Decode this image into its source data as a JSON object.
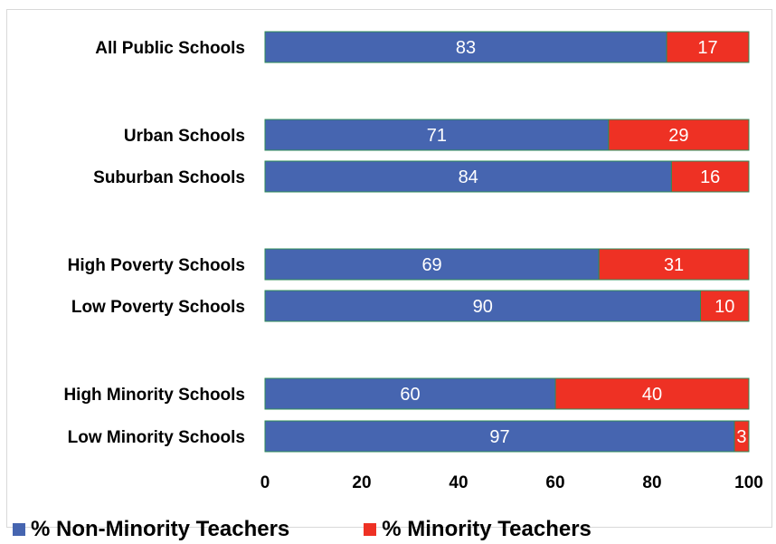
{
  "chart_data": {
    "type": "bar",
    "orientation": "horizontal",
    "stacked": true,
    "categories": [
      "All Public Schools",
      "Urban Schools",
      "Suburban Schools",
      "High Poverty Schools",
      "Low Poverty Schools",
      "High Minority Schools",
      "Low Minority Schools"
    ],
    "groups": [
      [
        0
      ],
      [
        1,
        2
      ],
      [
        3,
        4
      ],
      [
        5,
        6
      ]
    ],
    "series": [
      {
        "name": "% Non-Minority Teachers",
        "color": "#4665b0",
        "values": [
          83,
          71,
          84,
          69,
          90,
          60,
          97
        ]
      },
      {
        "name": "% Minority Teachers",
        "color": "#ee3124",
        "values": [
          17,
          29,
          16,
          31,
          10,
          40,
          3
        ]
      }
    ],
    "xlim": [
      0,
      100
    ],
    "xticks": [
      0,
      20,
      40,
      60,
      80,
      100
    ],
    "bar_outline_color": "#2e8b57",
    "data_labels": true,
    "gridlines": false,
    "legend_position": "bottom"
  }
}
